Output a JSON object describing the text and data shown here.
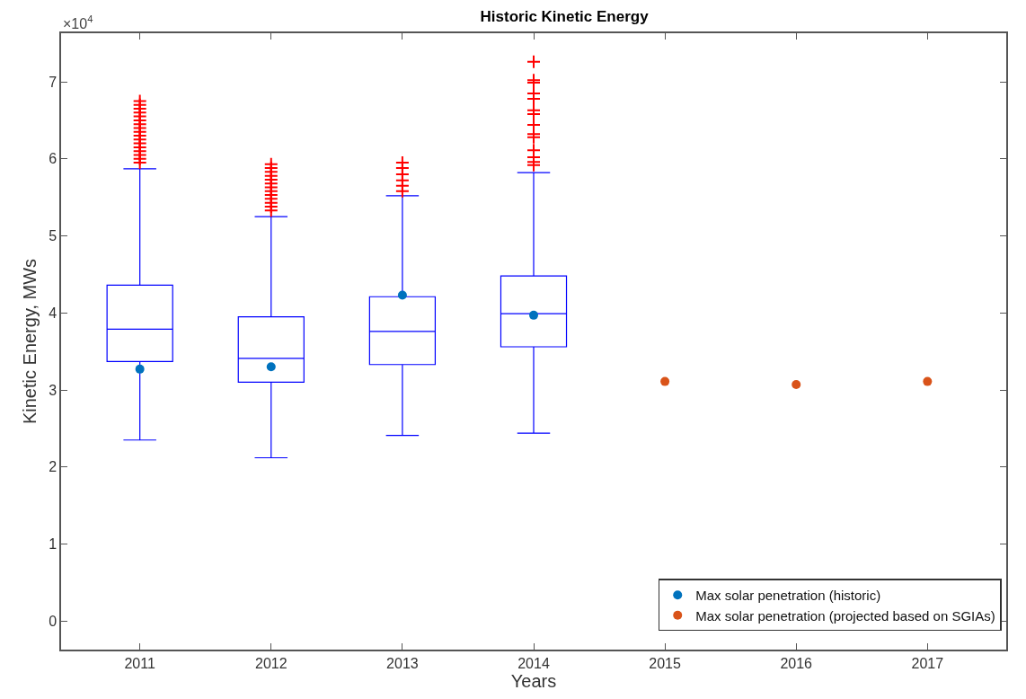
{
  "chart_data": {
    "type": "box",
    "title": "Historic Kinetic Energy",
    "xlabel": "Years",
    "ylabel": "Kinetic Energy, MWs",
    "annotations": [
      "×10$^{4}$"
    ],
    "categories": [
      "2011",
      "2012",
      "2013",
      "2014",
      "2015",
      "2016",
      "2017"
    ],
    "ylim": [
      -0.37,
      7.63
    ],
    "yticks": [
      0,
      1,
      2,
      3,
      4,
      5,
      6,
      7
    ],
    "series": [
      {
        "color": "#0000ff",
        "boxes": [
          {
            "low": 2.35,
            "q1": 3.37,
            "median": 3.79,
            "q3": 4.36,
            "high": 5.87,
            "outliers": [
              5.95,
              6.0,
              6.05,
              6.1,
              6.15,
              6.2,
              6.25,
              6.3,
              6.35,
              6.4,
              6.45,
              6.5,
              6.55,
              6.6,
              6.65,
              6.7,
              6.75
            ]
          },
          {
            "low": 2.12,
            "q1": 3.1,
            "median": 3.41,
            "q3": 3.95,
            "high": 5.25,
            "outliers": [
              5.33,
              5.38,
              5.43,
              5.48,
              5.53,
              5.58,
              5.63,
              5.68,
              5.73,
              5.78,
              5.83,
              5.88,
              5.93
            ]
          },
          {
            "low": 2.41,
            "q1": 3.33,
            "median": 3.76,
            "q3": 4.21,
            "high": 5.52,
            "outliers": [
              5.58,
              5.65,
              5.72,
              5.8,
              5.88,
              5.95
            ]
          },
          {
            "low": 2.44,
            "q1": 3.56,
            "median": 3.99,
            "q3": 4.48,
            "high": 5.82,
            "outliers": [
              5.92,
              5.96,
              6.02,
              6.11,
              6.28,
              6.32,
              6.44,
              6.58,
              6.63,
              6.78,
              6.85,
              6.99,
              7.02,
              7.26
            ]
          },
          null,
          null,
          null
        ]
      },
      {
        "type": "scatter",
        "name": "Max solar penetration (historic)",
        "color": "#0072bd",
        "values": [
          3.27,
          3.3,
          4.23,
          3.97,
          null,
          null,
          null
        ]
      },
      {
        "type": "scatter",
        "name": "Max solar penetration (projected based on SGIAs)",
        "color": "#d95319",
        "values": [
          null,
          null,
          null,
          null,
          3.11,
          3.07,
          3.11
        ]
      }
    ],
    "marker": "circle",
    "legend": "bottom right"
  }
}
